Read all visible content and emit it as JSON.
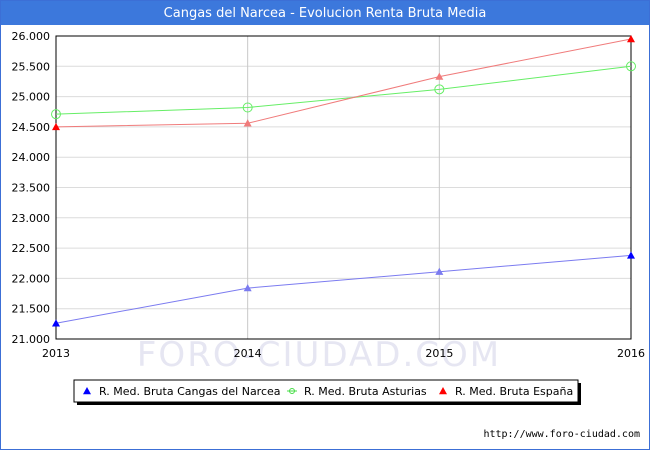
{
  "header": {
    "title": "Cangas del Narcea - Evolucion Renta Bruta Media"
  },
  "watermark": "FORO-CIUDAD.COM",
  "footer": {
    "source_url": "http://www.foro-ciudad.com"
  },
  "chart_data": {
    "type": "line",
    "title": "Cangas del Narcea - Evolucion Renta Bruta Media",
    "xlabel": "",
    "ylabel": "",
    "x": [
      2013,
      2014,
      2015,
      2016
    ],
    "x_tick_labels": [
      "2013",
      "2014",
      "2015",
      "2016"
    ],
    "ylim": [
      21000,
      26000
    ],
    "y_ticks": [
      21000,
      21500,
      22000,
      22500,
      23000,
      23500,
      24000,
      24500,
      25000,
      25500,
      26000
    ],
    "y_tick_labels": [
      "21.000",
      "21.500",
      "22.000",
      "22.500",
      "23.000",
      "23.500",
      "24.000",
      "24.500",
      "25.000",
      "25.500",
      "26.000"
    ],
    "grid": true,
    "legend_position": "bottom",
    "series": [
      {
        "name": "R. Med. Bruta Cangas del Narcea",
        "values": [
          21260,
          21840,
          22110,
          22380
        ],
        "color": "#7b7bf0",
        "legend_color": "#0000ff",
        "marker": "triangle"
      },
      {
        "name": "R. Med. Bruta Asturias",
        "values": [
          24710,
          24820,
          25120,
          25500
        ],
        "color": "#66ee66",
        "legend_color": "#44dd44",
        "marker": "circle"
      },
      {
        "name": "R. Med. Bruta España",
        "values": [
          24500,
          24560,
          25330,
          25950
        ],
        "color": "#f07b7b",
        "legend_color": "#ff0000",
        "marker": "triangle"
      }
    ]
  }
}
